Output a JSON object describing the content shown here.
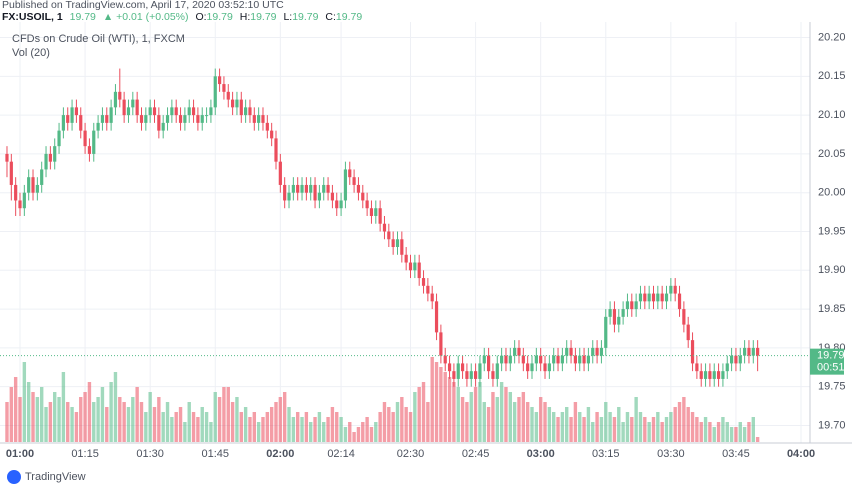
{
  "chart_data": {
    "type": "candlestick",
    "header": {
      "published": "Published on TradingView.com, April 17, 2020 03:52:10 UTC",
      "symbol": "FX:USOIL, 1",
      "price": 19.79,
      "change": "▲ +0.01 (+0.05%)",
      "o_label": "O:",
      "o": 19.79,
      "h_label": "H:",
      "h": 19.79,
      "l_label": "L:",
      "l": 19.79,
      "c_label": "C:",
      "c": 19.79
    },
    "title": "CFDs on Crude Oil (WTI), 1, FXCM",
    "volume_label": "Vol (20)",
    "footer": "TradingView",
    "up_color": "#53b987",
    "down_color": "#eb4d5c",
    "last_price": 19.79,
    "countdown": "00:51",
    "grid": true,
    "ylim": [
      19.68,
      20.22
    ],
    "yticks": [
      {
        "value": 19.7,
        "label": "19.70"
      },
      19.75,
      {
        "value": 19.8,
        "label": "19.80"
      },
      19.85,
      {
        "value": 19.9,
        "label": "19.90"
      },
      19.95,
      {
        "value": 20,
        "label": "20.00"
      },
      20.05,
      {
        "value": 20.1,
        "label": "20.10"
      },
      20.15,
      {
        "value": 20.2,
        "label": "20.20"
      }
    ],
    "xticks": [
      "01:00",
      "01:15",
      "01:30",
      "01:45",
      "02:00",
      "02:14",
      "02:30",
      "02:45",
      "03:00",
      "03:15",
      "03:30",
      "03:45",
      "04:00"
    ],
    "x": [
      "00:57",
      "00:58",
      "00:59",
      "01:00",
      "01:01",
      "01:02",
      "01:03",
      "01:04",
      "01:05",
      "01:06",
      "01:07",
      "01:08",
      "01:09",
      "01:10",
      "01:11",
      "01:12",
      "01:13",
      "01:14",
      "01:15",
      "01:16",
      "01:17",
      "01:18",
      "01:19",
      "01:20",
      "01:21",
      "01:22",
      "01:23",
      "01:24",
      "01:25",
      "01:26",
      "01:27",
      "01:28",
      "01:29",
      "01:30",
      "01:31",
      "01:32",
      "01:33",
      "01:34",
      "01:35",
      "01:36",
      "01:37",
      "01:38",
      "01:39",
      "01:40",
      "01:41",
      "01:42",
      "01:43",
      "01:44",
      "01:45",
      "01:46",
      "01:47",
      "01:48",
      "01:49",
      "01:50",
      "01:51",
      "01:52",
      "01:53",
      "01:54",
      "01:55",
      "01:56",
      "01:57",
      "01:58",
      "01:59",
      "02:00",
      "02:01",
      "02:02",
      "02:03",
      "02:04",
      "02:05",
      "02:06",
      "02:07",
      "02:08",
      "02:09",
      "02:10",
      "02:11",
      "02:12",
      "02:13",
      "02:14",
      "02:15",
      "02:16",
      "02:17",
      "02:18",
      "02:19",
      "02:20",
      "02:21",
      "02:22",
      "02:23",
      "02:24",
      "02:25",
      "02:26",
      "02:27",
      "02:28",
      "02:29",
      "02:30",
      "02:31",
      "02:32",
      "02:33",
      "02:34",
      "02:35",
      "02:36",
      "02:37",
      "02:38",
      "02:39",
      "02:40",
      "02:41",
      "02:42",
      "02:43",
      "02:44",
      "02:45",
      "02:46",
      "02:47",
      "02:48",
      "02:49",
      "02:50",
      "02:51",
      "02:52",
      "02:53",
      "02:54",
      "02:55",
      "02:56",
      "02:57",
      "02:58",
      "02:59",
      "03:00",
      "03:01",
      "03:02",
      "03:03",
      "03:04",
      "03:05",
      "03:06",
      "03:07",
      "03:08",
      "03:09",
      "03:10",
      "03:11",
      "03:12",
      "03:13",
      "03:14",
      "03:15",
      "03:16",
      "03:17",
      "03:18",
      "03:19",
      "03:20",
      "03:21",
      "03:22",
      "03:23",
      "03:24",
      "03:25",
      "03:26",
      "03:27",
      "03:28",
      "03:29",
      "03:30",
      "03:31",
      "03:32",
      "03:33",
      "03:34",
      "03:35",
      "03:36",
      "03:37",
      "03:38",
      "03:39",
      "03:40",
      "03:41",
      "03:42",
      "03:43",
      "03:44",
      "03:45",
      "03:46",
      "03:47",
      "03:48",
      "03:49",
      "03:50"
    ],
    "candles": [
      [
        20.05,
        20.06,
        20.02,
        20.04
      ],
      [
        20.04,
        20.05,
        19.99,
        20.01
      ],
      [
        20.01,
        20.02,
        19.97,
        19.99
      ],
      [
        19.99,
        20.0,
        19.97,
        19.98
      ],
      [
        19.98,
        20.01,
        19.97,
        20.0
      ],
      [
        20.0,
        20.03,
        19.99,
        20.02
      ],
      [
        20.02,
        20.03,
        19.99,
        20.0
      ],
      [
        20.0,
        20.02,
        19.99,
        20.01
      ],
      [
        20.01,
        20.04,
        20.0,
        20.03
      ],
      [
        20.03,
        20.06,
        20.02,
        20.05
      ],
      [
        20.05,
        20.06,
        20.03,
        20.04
      ],
      [
        20.04,
        20.07,
        20.03,
        20.06
      ],
      [
        20.06,
        20.09,
        20.05,
        20.08
      ],
      [
        20.08,
        20.11,
        20.07,
        20.1
      ],
      [
        20.1,
        20.11,
        20.08,
        20.09
      ],
      [
        20.09,
        20.12,
        20.08,
        20.11
      ],
      [
        20.11,
        20.12,
        20.09,
        20.1
      ],
      [
        20.1,
        20.11,
        20.07,
        20.08
      ],
      [
        20.08,
        20.09,
        20.05,
        20.06
      ],
      [
        20.06,
        20.07,
        20.04,
        20.05
      ],
      [
        20.05,
        20.09,
        20.04,
        20.08
      ],
      [
        20.08,
        20.1,
        20.07,
        20.09
      ],
      [
        20.09,
        20.11,
        20.08,
        20.1
      ],
      [
        20.1,
        20.11,
        20.08,
        20.09
      ],
      [
        20.09,
        20.12,
        20.08,
        20.11
      ],
      [
        20.11,
        20.14,
        20.1,
        20.13
      ],
      [
        20.13,
        20.16,
        20.11,
        20.12
      ],
      [
        20.12,
        20.13,
        20.09,
        20.1
      ],
      [
        20.1,
        20.12,
        20.09,
        20.11
      ],
      [
        20.11,
        20.13,
        20.1,
        20.12
      ],
      [
        20.12,
        20.13,
        20.09,
        20.1
      ],
      [
        20.1,
        20.11,
        20.08,
        20.09
      ],
      [
        20.09,
        20.11,
        20.08,
        20.1
      ],
      [
        20.1,
        20.12,
        20.09,
        20.11
      ],
      [
        20.11,
        20.12,
        20.09,
        20.1
      ],
      [
        20.1,
        20.11,
        20.07,
        20.08
      ],
      [
        20.08,
        20.1,
        20.07,
        20.09
      ],
      [
        20.09,
        20.11,
        20.08,
        20.1
      ],
      [
        20.1,
        20.12,
        20.09,
        20.11
      ],
      [
        20.11,
        20.12,
        20.09,
        20.1
      ],
      [
        20.1,
        20.11,
        20.08,
        20.09
      ],
      [
        20.09,
        20.11,
        20.08,
        20.1
      ],
      [
        20.1,
        20.12,
        20.09,
        20.11
      ],
      [
        20.11,
        20.12,
        20.09,
        20.1
      ],
      [
        20.1,
        20.11,
        20.08,
        20.09
      ],
      [
        20.09,
        20.11,
        20.08,
        20.1
      ],
      [
        20.1,
        20.11,
        20.09,
        20.1
      ],
      [
        20.1,
        20.12,
        20.09,
        20.11
      ],
      [
        20.11,
        20.16,
        20.1,
        20.15
      ],
      [
        20.15,
        20.16,
        20.13,
        20.14
      ],
      [
        20.14,
        20.15,
        20.12,
        20.13
      ],
      [
        20.13,
        20.14,
        20.11,
        20.12
      ],
      [
        20.12,
        20.13,
        20.1,
        20.11
      ],
      [
        20.11,
        20.13,
        20.1,
        20.12
      ],
      [
        20.12,
        20.13,
        20.09,
        20.1
      ],
      [
        20.1,
        20.12,
        20.09,
        20.11
      ],
      [
        20.11,
        20.12,
        20.09,
        20.1
      ],
      [
        20.1,
        20.11,
        20.08,
        20.09
      ],
      [
        20.09,
        20.11,
        20.08,
        20.1
      ],
      [
        20.1,
        20.11,
        20.08,
        20.09
      ],
      [
        20.09,
        20.1,
        20.07,
        20.08
      ],
      [
        20.08,
        20.09,
        20.06,
        20.07
      ],
      [
        20.07,
        20.08,
        20.03,
        20.04
      ],
      [
        20.04,
        20.05,
        20.0,
        20.01
      ],
      [
        20.01,
        20.02,
        19.98,
        19.99
      ],
      [
        19.99,
        20.01,
        19.98,
        20.0
      ],
      [
        20.0,
        20.02,
        19.99,
        20.01
      ],
      [
        20.01,
        20.02,
        19.99,
        20.0
      ],
      [
        20.0,
        20.02,
        19.99,
        20.01
      ],
      [
        20.01,
        20.02,
        19.99,
        20.0
      ],
      [
        20.0,
        20.02,
        19.99,
        20.01
      ],
      [
        20.01,
        20.02,
        19.98,
        19.99
      ],
      [
        19.99,
        20.01,
        19.98,
        20.0
      ],
      [
        20.0,
        20.02,
        19.99,
        20.01
      ],
      [
        20.01,
        20.02,
        19.99,
        20.0
      ],
      [
        20.0,
        20.01,
        19.98,
        19.99
      ],
      [
        19.99,
        20.0,
        19.97,
        19.98
      ],
      [
        19.98,
        20.0,
        19.97,
        19.99
      ],
      [
        19.99,
        20.04,
        19.98,
        20.03
      ],
      [
        20.03,
        20.04,
        20.01,
        20.02
      ],
      [
        20.02,
        20.03,
        20.0,
        20.01
      ],
      [
        20.01,
        20.02,
        19.99,
        20.0
      ],
      [
        20.0,
        20.01,
        19.98,
        19.99
      ],
      [
        19.99,
        20.0,
        19.97,
        19.98
      ],
      [
        19.98,
        19.99,
        19.96,
        19.97
      ],
      [
        19.97,
        19.99,
        19.96,
        19.98
      ],
      [
        19.98,
        19.99,
        19.95,
        19.96
      ],
      [
        19.96,
        19.97,
        19.94,
        19.95
      ],
      [
        19.95,
        19.96,
        19.93,
        19.94
      ],
      [
        19.94,
        19.95,
        19.92,
        19.93
      ],
      [
        19.93,
        19.95,
        19.92,
        19.94
      ],
      [
        19.94,
        19.95,
        19.91,
        19.92
      ],
      [
        19.92,
        19.93,
        19.9,
        19.91
      ],
      [
        19.91,
        19.92,
        19.89,
        19.9
      ],
      [
        19.9,
        19.92,
        19.89,
        19.91
      ],
      [
        19.91,
        19.92,
        19.88,
        19.89
      ],
      [
        19.89,
        19.9,
        19.87,
        19.88
      ],
      [
        19.88,
        19.89,
        19.86,
        19.87
      ],
      [
        19.87,
        19.88,
        19.85,
        19.86
      ],
      [
        19.86,
        19.87,
        19.81,
        19.82
      ],
      [
        19.82,
        19.83,
        19.78,
        19.79
      ],
      [
        19.79,
        19.8,
        19.77,
        19.78
      ],
      [
        19.78,
        19.79,
        19.76,
        19.77
      ],
      [
        19.77,
        19.78,
        19.75,
        19.76
      ],
      [
        19.76,
        19.79,
        19.75,
        19.78
      ],
      [
        19.78,
        19.79,
        19.76,
        19.77
      ],
      [
        19.77,
        19.78,
        19.75,
        19.76
      ],
      [
        19.76,
        19.78,
        19.75,
        19.77
      ],
      [
        19.77,
        19.78,
        19.75,
        19.76
      ],
      [
        19.76,
        19.79,
        19.75,
        19.78
      ],
      [
        19.78,
        19.8,
        19.77,
        19.79
      ],
      [
        19.79,
        19.8,
        19.76,
        19.77
      ],
      [
        19.77,
        19.78,
        19.75,
        19.76
      ],
      [
        19.76,
        19.79,
        19.75,
        19.78
      ],
      [
        19.78,
        19.8,
        19.77,
        19.79
      ],
      [
        19.79,
        19.8,
        19.77,
        19.78
      ],
      [
        19.78,
        19.8,
        19.77,
        19.79
      ],
      [
        19.79,
        19.81,
        19.78,
        19.8
      ],
      [
        19.8,
        19.81,
        19.78,
        19.79
      ],
      [
        19.79,
        19.8,
        19.77,
        19.78
      ],
      [
        19.78,
        19.79,
        19.76,
        19.77
      ],
      [
        19.77,
        19.79,
        19.76,
        19.78
      ],
      [
        19.78,
        19.8,
        19.77,
        19.79
      ],
      [
        19.79,
        19.8,
        19.77,
        19.78
      ],
      [
        19.78,
        19.79,
        19.76,
        19.77
      ],
      [
        19.77,
        19.79,
        19.76,
        19.78
      ],
      [
        19.78,
        19.8,
        19.77,
        19.79
      ],
      [
        19.79,
        19.8,
        19.77,
        19.78
      ],
      [
        19.78,
        19.8,
        19.77,
        19.79
      ],
      [
        19.79,
        19.81,
        19.78,
        19.8
      ],
      [
        19.8,
        19.81,
        19.78,
        19.79
      ],
      [
        19.79,
        19.8,
        19.77,
        19.78
      ],
      [
        19.78,
        19.8,
        19.77,
        19.79
      ],
      [
        19.79,
        19.8,
        19.77,
        19.78
      ],
      [
        19.78,
        19.8,
        19.77,
        19.79
      ],
      [
        19.79,
        19.81,
        19.78,
        19.8
      ],
      [
        19.8,
        19.81,
        19.78,
        19.79
      ],
      [
        19.79,
        19.81,
        19.78,
        19.8
      ],
      [
        19.8,
        19.85,
        19.79,
        19.84
      ],
      [
        19.84,
        19.86,
        19.83,
        19.85
      ],
      [
        19.85,
        19.86,
        19.82,
        19.83
      ],
      [
        19.83,
        19.85,
        19.82,
        19.84
      ],
      [
        19.84,
        19.86,
        19.83,
        19.85
      ],
      [
        19.85,
        19.87,
        19.84,
        19.86
      ],
      [
        19.86,
        19.87,
        19.84,
        19.85
      ],
      [
        19.85,
        19.87,
        19.84,
        19.86
      ],
      [
        19.86,
        19.88,
        19.85,
        19.87
      ],
      [
        19.87,
        19.88,
        19.85,
        19.86
      ],
      [
        19.86,
        19.88,
        19.85,
        19.87
      ],
      [
        19.87,
        19.88,
        19.85,
        19.86
      ],
      [
        19.86,
        19.88,
        19.85,
        19.87
      ],
      [
        19.87,
        19.88,
        19.85,
        19.86
      ],
      [
        19.86,
        19.88,
        19.85,
        19.87
      ],
      [
        19.87,
        19.89,
        19.86,
        19.88
      ],
      [
        19.88,
        19.89,
        19.86,
        19.87
      ],
      [
        19.87,
        19.88,
        19.84,
        19.85
      ],
      [
        19.85,
        19.86,
        19.82,
        19.83
      ],
      [
        19.83,
        19.84,
        19.8,
        19.81
      ],
      [
        19.81,
        19.82,
        19.77,
        19.78
      ],
      [
        19.78,
        19.79,
        19.76,
        19.77
      ],
      [
        19.77,
        19.78,
        19.75,
        19.76
      ],
      [
        19.76,
        19.78,
        19.75,
        19.77
      ],
      [
        19.77,
        19.78,
        19.75,
        19.76
      ],
      [
        19.76,
        19.78,
        19.75,
        19.77
      ],
      [
        19.77,
        19.78,
        19.75,
        19.76
      ],
      [
        19.76,
        19.78,
        19.75,
        19.77
      ],
      [
        19.77,
        19.79,
        19.76,
        19.78
      ],
      [
        19.78,
        19.8,
        19.77,
        19.79
      ],
      [
        19.79,
        19.8,
        19.77,
        19.78
      ],
      [
        19.78,
        19.8,
        19.77,
        19.79
      ],
      [
        19.79,
        19.81,
        19.78,
        19.8
      ],
      [
        19.8,
        19.81,
        19.78,
        19.79
      ],
      [
        19.79,
        19.81,
        19.78,
        19.8
      ],
      [
        19.8,
        19.81,
        19.77,
        19.79
      ]
    ],
    "volume": [
      40,
      55,
      65,
      45,
      80,
      60,
      50,
      45,
      55,
      35,
      40,
      50,
      45,
      70,
      40,
      35,
      30,
      45,
      50,
      60,
      40,
      45,
      55,
      35,
      60,
      70,
      45,
      40,
      35,
      45,
      55,
      40,
      30,
      50,
      35,
      45,
      30,
      40,
      25,
      30,
      35,
      20,
      40,
      30,
      25,
      35,
      30,
      20,
      50,
      45,
      55,
      55,
      40,
      45,
      30,
      35,
      25,
      30,
      20,
      25,
      30,
      35,
      40,
      45,
      50,
      35,
      25,
      30,
      25,
      30,
      20,
      25,
      30,
      20,
      25,
      35,
      30,
      25,
      15,
      20,
      10,
      15,
      20,
      25,
      15,
      20,
      30,
      40,
      35,
      30,
      40,
      45,
      35,
      30,
      50,
      55,
      60,
      40,
      85,
      80,
      75,
      70,
      65,
      60,
      55,
      45,
      40,
      50,
      55,
      60,
      40,
      35,
      50,
      45,
      60,
      55,
      50,
      40,
      45,
      50,
      40,
      35,
      30,
      45,
      40,
      35,
      30,
      25,
      30,
      35,
      25,
      40,
      30,
      25,
      35,
      20,
      30,
      25,
      40,
      30,
      25,
      35,
      20,
      30,
      25,
      45,
      30,
      25,
      20,
      25,
      30,
      20,
      25,
      30,
      35,
      40,
      45,
      35,
      30,
      25,
      20,
      25,
      20,
      15,
      20,
      25,
      20,
      15,
      15,
      20,
      15,
      20,
      25,
      5
    ]
  }
}
